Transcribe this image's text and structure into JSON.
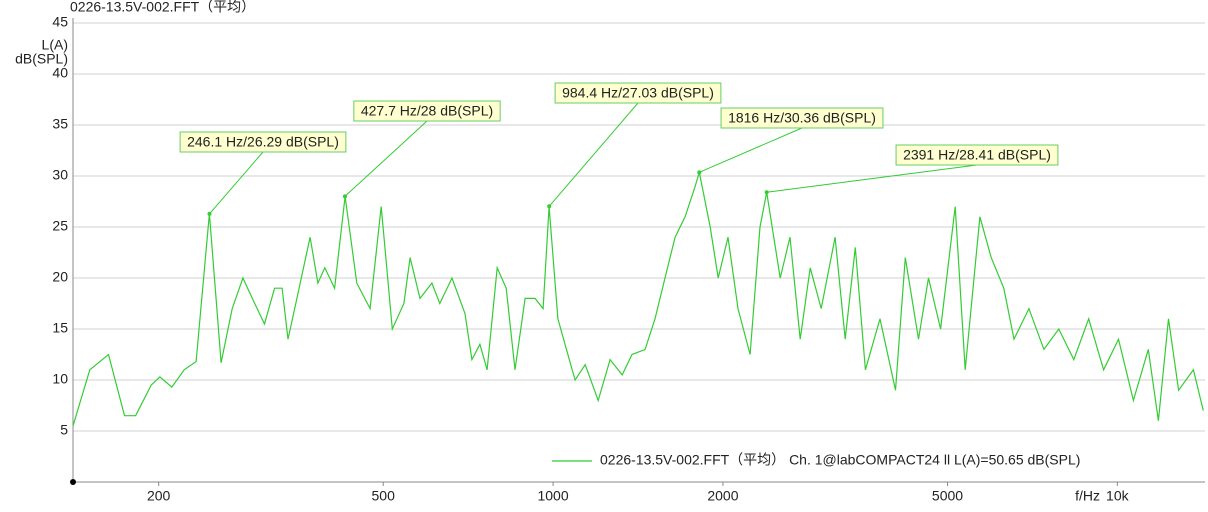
{
  "chart_data": {
    "type": "line",
    "title": "0226-13.5V-002.FFT（平均）",
    "y_label": [
      "L(A)",
      "dB(SPL)"
    ],
    "x_label": "f/Hz",
    "xscale": "log",
    "xlim": [
      141,
      14300
    ],
    "ylim": [
      0,
      45
    ],
    "xticks": [
      200,
      500,
      1000,
      2000,
      5000,
      {
        "value": 10000,
        "label": "10k"
      }
    ],
    "yticks": [
      5,
      10,
      15,
      20,
      25,
      30,
      35,
      40,
      45
    ],
    "grid": true,
    "legend": "bottom-right",
    "x": [
      141,
      151,
      163,
      174,
      182,
      194,
      201,
      211,
      222,
      233,
      246,
      258,
      270,
      282,
      296,
      308,
      321,
      331,
      339,
      350,
      371,
      383,
      394,
      410,
      428,
      449,
      474,
      496,
      519,
      544,
      558,
      581,
      610,
      630,
      662,
      698,
      718,
      742,
      764,
      796,
      826,
      856,
      892,
      929,
      960,
      984,
      1020,
      1050,
      1094,
      1140,
      1202,
      1262,
      1326,
      1380,
      1456,
      1516,
      1579,
      1645,
      1714,
      1786,
      1816,
      1899,
      1962,
      2042,
      2127,
      2234,
      2327,
      2391,
      2526,
      2630,
      2741,
      2855,
      2987,
      3161,
      3294,
      3433,
      3577,
      3796,
      4045,
      4210,
      4442,
      4627,
      4862,
      5160,
      5375,
      5706,
      5977,
      6291,
      6559,
      6969,
      7410,
      7875,
      8372,
      8895,
      9453,
      10047,
      10677,
      11347,
      11825,
      12320,
      12840,
      13640,
      14200
    ],
    "series": [
      {
        "name": "0226-13.5V-002.FFT（平均） Ch. 1@labCOMPACT24 ll L(A)=50.65 dB(SPL)",
        "color": "#33cc33",
        "values": [
          5.5,
          11,
          12.5,
          6.5,
          6.5,
          9.5,
          10.3,
          9.3,
          11,
          11.8,
          26.3,
          11.7,
          17,
          20,
          17.5,
          15.5,
          19,
          19,
          14,
          17.5,
          24,
          19.5,
          21,
          19,
          28,
          19.5,
          17,
          27,
          15,
          17.5,
          22,
          18,
          19.5,
          17.5,
          20,
          16.5,
          12,
          13.5,
          11,
          21,
          19,
          11,
          18,
          18,
          17,
          27,
          16,
          13.5,
          10,
          11.5,
          8,
          12,
          10.5,
          12.5,
          13,
          16,
          20,
          24,
          26,
          29,
          30.36,
          25,
          20,
          24,
          17,
          12.5,
          25,
          28.4,
          20,
          24,
          14,
          21,
          17,
          24,
          14,
          23,
          11,
          16,
          9,
          22,
          14,
          20,
          15,
          27,
          11,
          26,
          22,
          19,
          14,
          17,
          13,
          15,
          12,
          16,
          11,
          14,
          8,
          13,
          6,
          16,
          9,
          11,
          7
        ]
      }
    ],
    "annotations": [
      {
        "x": 246.1,
        "y": 26.29,
        "label": "246.1 Hz/26.29 dB(SPL)"
      },
      {
        "x": 427.7,
        "y": 28,
        "label": "427.7 Hz/28 dB(SPL)"
      },
      {
        "x": 984.4,
        "y": 27.03,
        "label": "984.4 Hz/27.03 dB(SPL)"
      },
      {
        "x": 1816,
        "y": 30.36,
        "label": "1816 Hz/30.36 dB(SPL)"
      },
      {
        "x": 2391,
        "y": 28.41,
        "label": "2391 Hz/28.41 dB(SPL)"
      }
    ]
  }
}
